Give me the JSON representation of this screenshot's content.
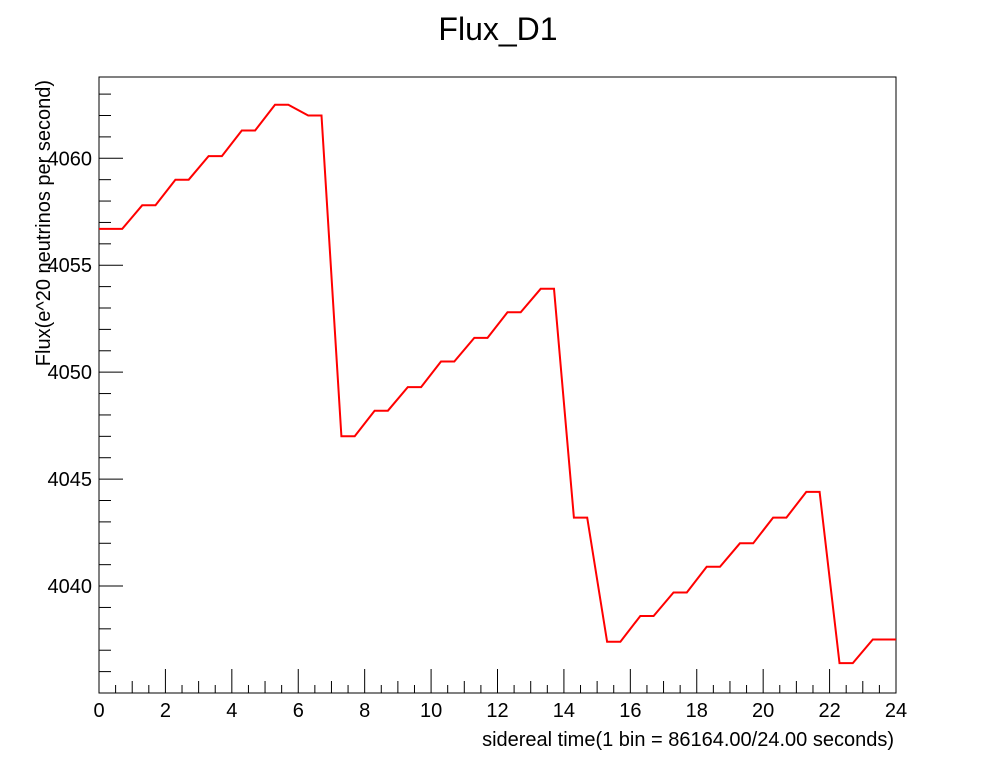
{
  "chart_data": {
    "type": "line",
    "title": "Flux_D1",
    "xlabel": "sidereal time(1 bin = 86164.00/24.00 seconds)",
    "ylabel": "Flux(e^20 neutrinos per second)",
    "xlim": [
      0,
      24
    ],
    "ylim": [
      4035,
      4063.8
    ],
    "x_ticks": [
      0,
      2,
      4,
      6,
      8,
      10,
      12,
      14,
      16,
      18,
      20,
      22,
      24
    ],
    "y_ticks": [
      4040,
      4045,
      4050,
      4055,
      4060
    ],
    "legend": "none",
    "grid": false,
    "colors": {
      "series": "#ff0000",
      "axis": "#000000",
      "background": "#ffffff"
    },
    "series": [
      {
        "x": [
          0.5,
          1.5,
          2.5,
          3.5,
          4.5,
          5.5,
          6.5,
          7.5,
          8.5,
          9.5,
          10.5,
          11.5,
          12.5,
          13.5,
          14.5,
          15.5,
          16.5,
          17.5,
          18.5,
          19.5,
          20.5,
          21.5,
          22.5,
          23.5
        ],
        "values": [
          4056.7,
          4057.8,
          4059.0,
          4060.1,
          4061.3,
          4062.5,
          4062.0,
          4047.0,
          4048.2,
          4049.3,
          4050.5,
          4051.6,
          4052.8,
          4053.9,
          4043.2,
          4037.4,
          4038.6,
          4039.7,
          4040.9,
          4042.0,
          4043.2,
          4044.4,
          4036.4,
          4037.5
        ]
      }
    ]
  }
}
